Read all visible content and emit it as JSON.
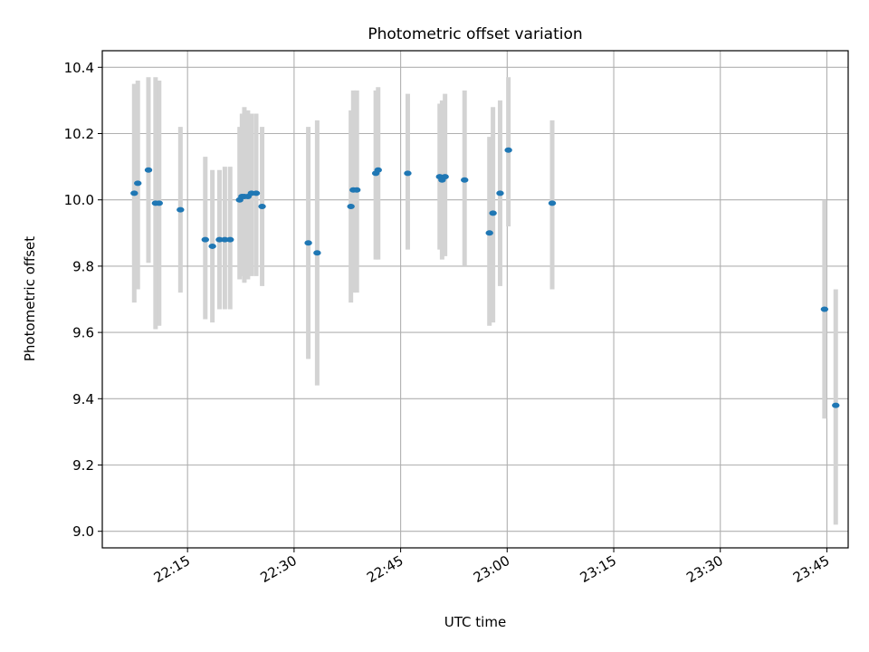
{
  "chart_data": {
    "type": "scatter",
    "title": "Photometric offset variation",
    "xlabel": "UTC time",
    "ylabel": "Photometric offset",
    "xlim": [
      "22:03",
      "23:48"
    ],
    "ylim": [
      8.95,
      10.45
    ],
    "x_ticks": [
      "22:15",
      "22:30",
      "22:45",
      "23:00",
      "23:15",
      "23:30",
      "23:45"
    ],
    "y_ticks": [
      9.0,
      9.2,
      9.4,
      9.6,
      9.8,
      10.0,
      10.2,
      10.4
    ],
    "grid": true,
    "colors": {
      "points": "#1f77b4",
      "errorbars": "#d3d3d3",
      "grid": "#b0b0b0"
    },
    "points": [
      {
        "x": "22:07:30",
        "y": 10.02,
        "lo": 9.69,
        "hi": 10.35
      },
      {
        "x": "22:08:00",
        "y": 10.05,
        "lo": 9.73,
        "hi": 10.36
      },
      {
        "x": "22:09:30",
        "y": 10.09,
        "lo": 9.81,
        "hi": 10.37
      },
      {
        "x": "22:10:30",
        "y": 9.99,
        "lo": 9.61,
        "hi": 10.37
      },
      {
        "x": "22:11:00",
        "y": 9.99,
        "lo": 9.62,
        "hi": 10.36
      },
      {
        "x": "22:14:00",
        "y": 9.97,
        "lo": 9.72,
        "hi": 10.22
      },
      {
        "x": "22:17:30",
        "y": 9.88,
        "lo": 9.64,
        "hi": 10.13
      },
      {
        "x": "22:18:30",
        "y": 9.86,
        "lo": 9.63,
        "hi": 10.09
      },
      {
        "x": "22:19:30",
        "y": 9.88,
        "lo": 9.67,
        "hi": 10.09
      },
      {
        "x": "22:20:15",
        "y": 9.88,
        "lo": 9.67,
        "hi": 10.1
      },
      {
        "x": "22:21:00",
        "y": 9.88,
        "lo": 9.67,
        "hi": 10.1
      },
      {
        "x": "22:22:20",
        "y": 10.0,
        "lo": 9.76,
        "hi": 10.22
      },
      {
        "x": "22:22:40",
        "y": 10.01,
        "lo": 9.77,
        "hi": 10.26
      },
      {
        "x": "22:23:00",
        "y": 10.01,
        "lo": 9.75,
        "hi": 10.28
      },
      {
        "x": "22:23:30",
        "y": 10.01,
        "lo": 9.76,
        "hi": 10.27
      },
      {
        "x": "22:24:00",
        "y": 10.02,
        "lo": 9.77,
        "hi": 10.26
      },
      {
        "x": "22:24:40",
        "y": 10.02,
        "lo": 9.77,
        "hi": 10.26
      },
      {
        "x": "22:25:30",
        "y": 9.98,
        "lo": 9.74,
        "hi": 10.22
      },
      {
        "x": "22:32:00",
        "y": 9.87,
        "lo": 9.52,
        "hi": 10.22
      },
      {
        "x": "22:33:15",
        "y": 9.84,
        "lo": 9.44,
        "hi": 10.24
      },
      {
        "x": "22:38:00",
        "y": 9.98,
        "lo": 9.69,
        "hi": 10.27
      },
      {
        "x": "22:38:20",
        "y": 10.03,
        "lo": 9.72,
        "hi": 10.33
      },
      {
        "x": "22:38:50",
        "y": 10.03,
        "lo": 9.72,
        "hi": 10.33
      },
      {
        "x": "22:41:30",
        "y": 10.08,
        "lo": 9.82,
        "hi": 10.33
      },
      {
        "x": "22:41:50",
        "y": 10.09,
        "lo": 9.82,
        "hi": 10.34
      },
      {
        "x": "22:46:00",
        "y": 10.08,
        "lo": 9.85,
        "hi": 10.32
      },
      {
        "x": "22:50:30",
        "y": 10.07,
        "lo": 9.85,
        "hi": 10.29
      },
      {
        "x": "22:50:50",
        "y": 10.06,
        "lo": 9.82,
        "hi": 10.3
      },
      {
        "x": "22:51:15",
        "y": 10.07,
        "lo": 9.83,
        "hi": 10.32
      },
      {
        "x": "22:54:00",
        "y": 10.06,
        "lo": 9.8,
        "hi": 10.33
      },
      {
        "x": "22:57:30",
        "y": 9.9,
        "lo": 9.62,
        "hi": 10.19
      },
      {
        "x": "22:58:00",
        "y": 9.96,
        "lo": 9.63,
        "hi": 10.28
      },
      {
        "x": "22:59:00",
        "y": 10.02,
        "lo": 9.74,
        "hi": 10.3
      },
      {
        "x": "23:00:10",
        "y": 10.15,
        "lo": 9.92,
        "hi": 10.37
      },
      {
        "x": "23:06:20",
        "y": 9.99,
        "lo": 9.73,
        "hi": 10.24
      },
      {
        "x": "23:44:40",
        "y": 9.67,
        "lo": 9.34,
        "hi": 10.0
      },
      {
        "x": "23:46:15",
        "y": 9.38,
        "lo": 9.02,
        "hi": 9.73
      }
    ]
  }
}
